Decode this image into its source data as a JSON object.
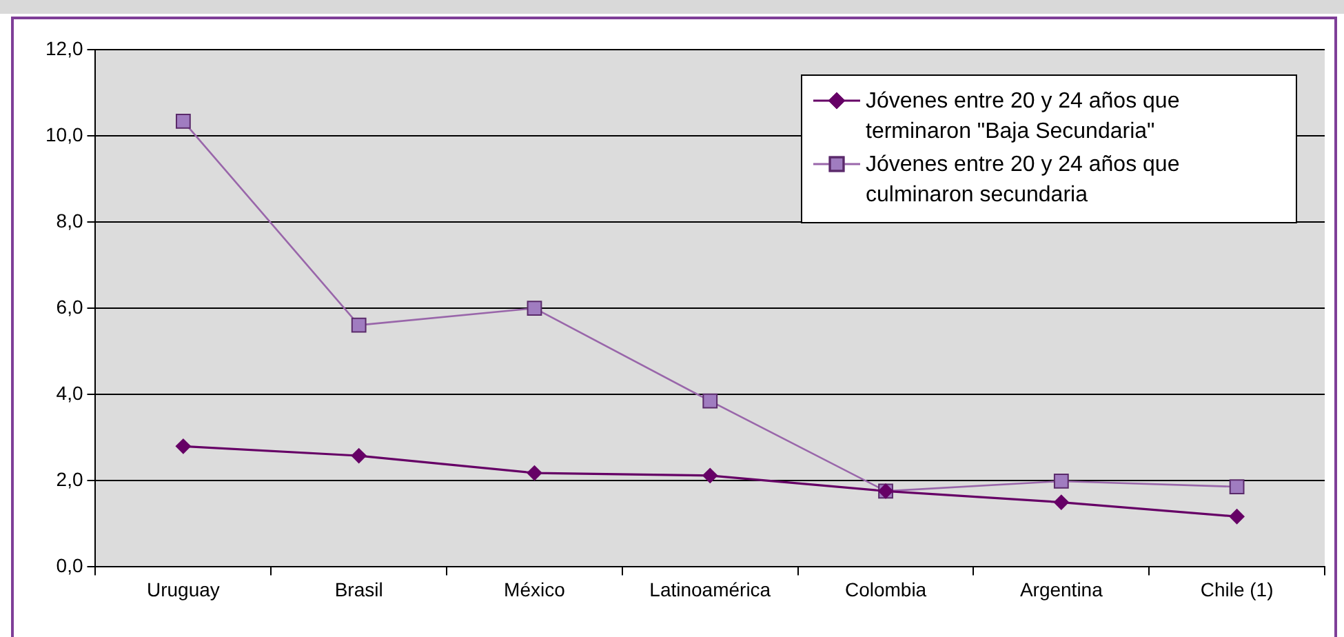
{
  "chart_data": {
    "type": "line",
    "categories": [
      "Uruguay",
      "Brasil",
      "México",
      "Latinoamérica",
      "Colombia",
      "Argentina",
      "Chile (1)"
    ],
    "series": [
      {
        "name": "Jóvenes entre 20 y 24 años que terminaron \"Baja Secundaria\"",
        "color": "#660066",
        "marker": "diamond",
        "values": [
          2.8,
          2.58,
          2.18,
          2.12,
          1.76,
          1.5,
          1.17
        ]
      },
      {
        "name": "Jóvenes entre 20 y 24 años que culminaron secundaria",
        "color": "#9966aa",
        "marker": "square",
        "values": [
          10.34,
          5.61,
          6.0,
          3.85,
          1.76,
          1.99,
          1.86
        ]
      }
    ],
    "ylim": [
      0,
      12
    ],
    "yticks": [
      {
        "value": 0,
        "label": "0,0"
      },
      {
        "value": 2,
        "label": "2,0"
      },
      {
        "value": 4,
        "label": "4,0"
      },
      {
        "value": 6,
        "label": "6,0"
      },
      {
        "value": 8,
        "label": "8,0"
      },
      {
        "value": 10,
        "label": "10,0"
      },
      {
        "value": 12,
        "label": "12,0"
      }
    ],
    "grid": "y",
    "legend": "top right"
  }
}
